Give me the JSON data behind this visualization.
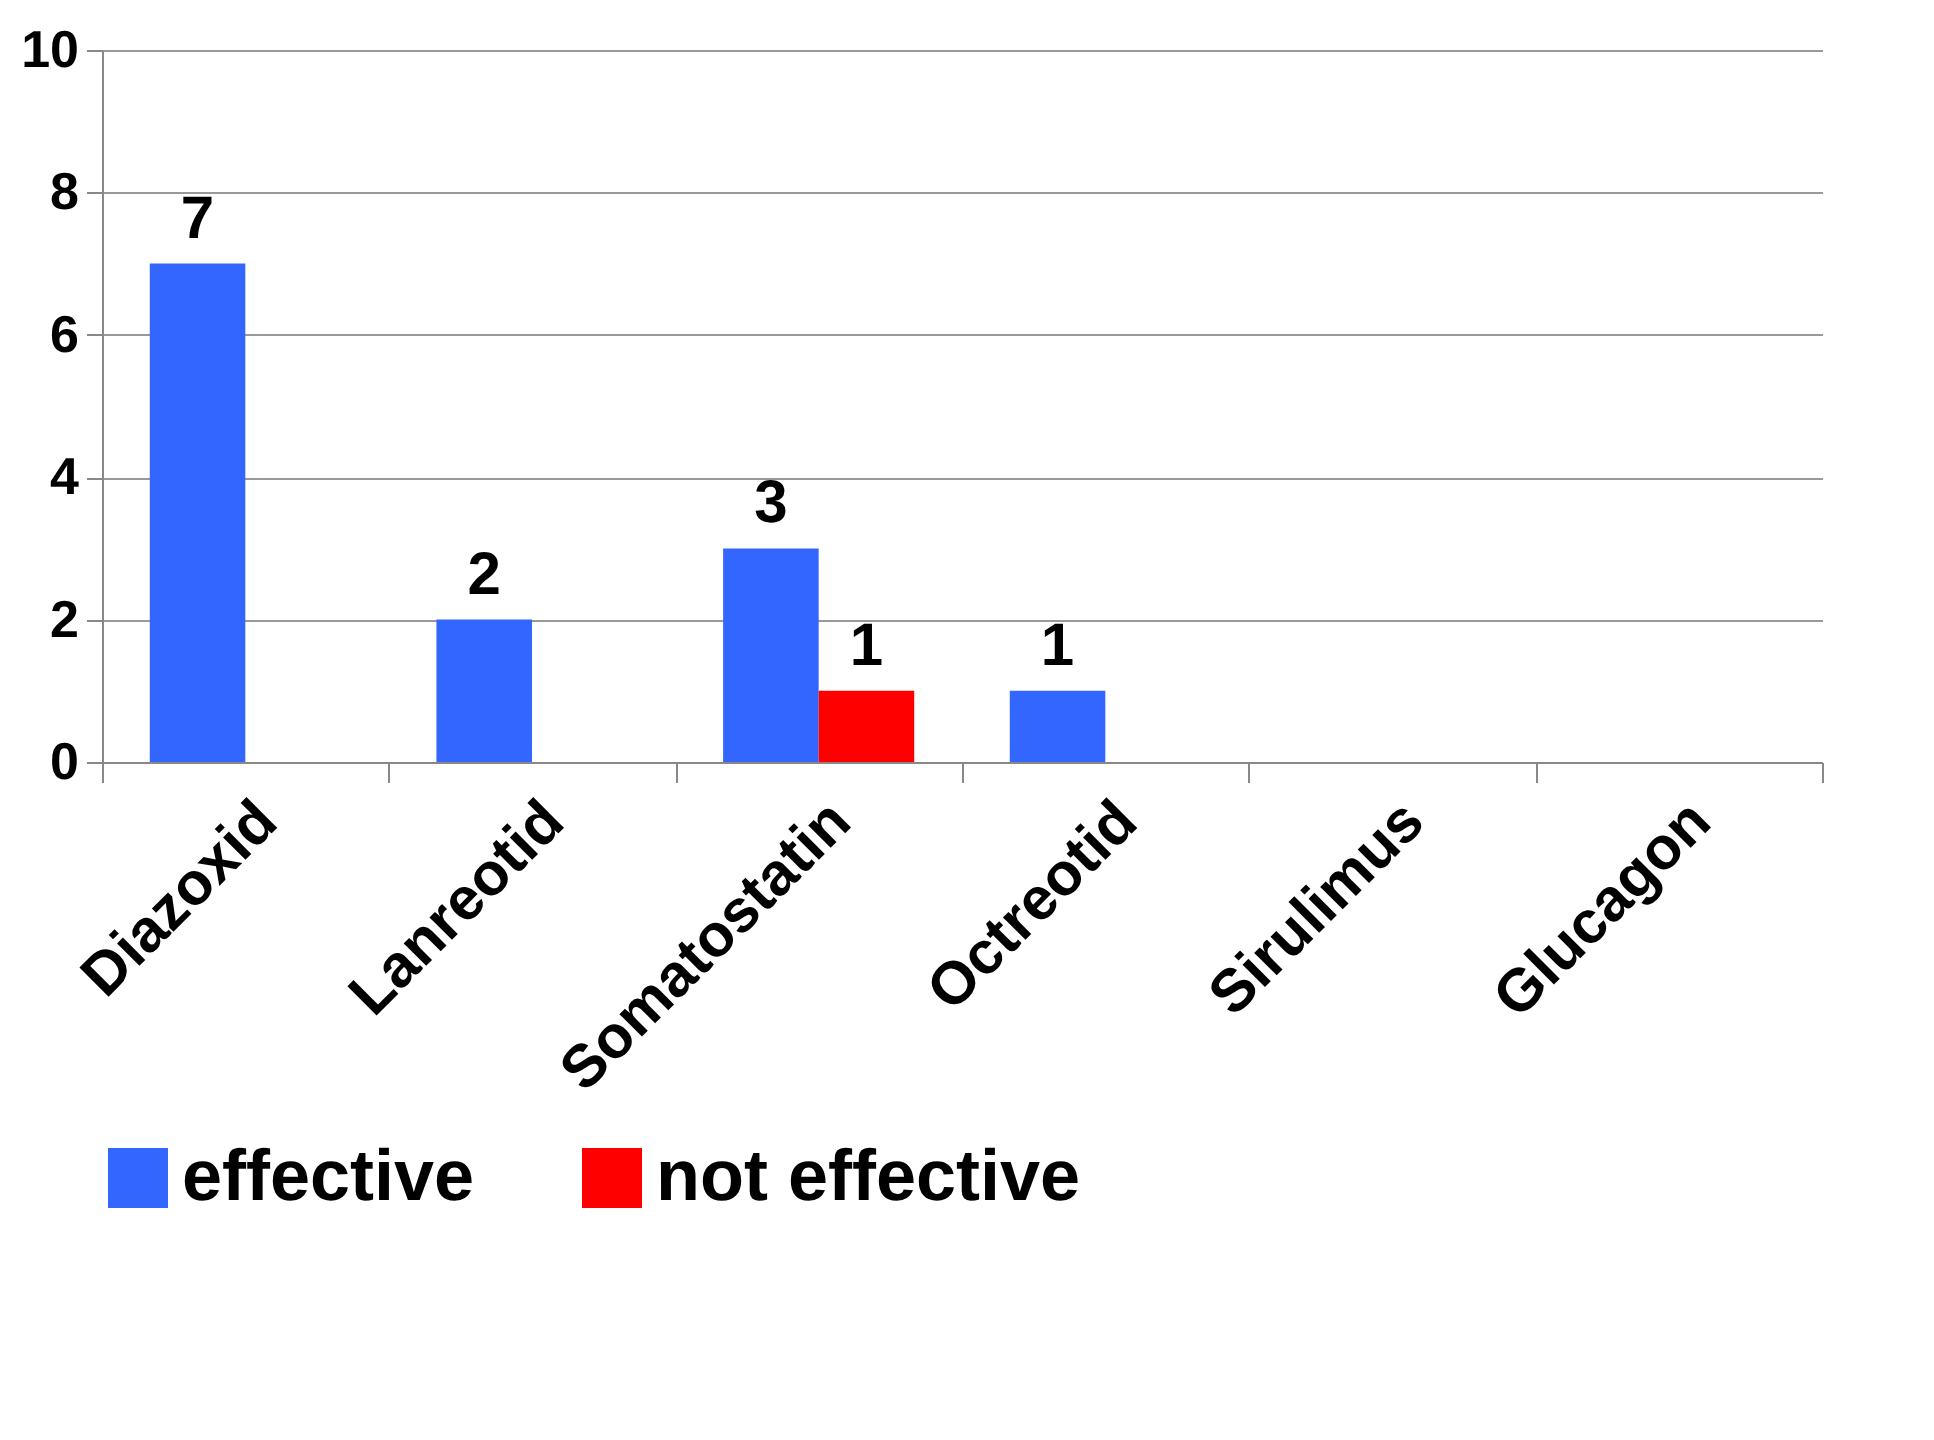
{
  "chart_data": {
    "type": "bar",
    "categories": [
      "Diazoxid",
      "Lanreotid",
      "Somatostatin",
      "Octreotid",
      "Sirulimus",
      "Glucagon"
    ],
    "series": [
      {
        "name": "effective",
        "color": "#3366ff",
        "values": [
          7,
          2,
          3,
          1,
          0,
          0
        ],
        "value_labels": [
          "7",
          "2",
          "3",
          "1",
          null,
          null
        ]
      },
      {
        "name": "not effective",
        "color": "#ff0000",
        "values": [
          0,
          0,
          1,
          0,
          0,
          0
        ],
        "value_labels": [
          null,
          null,
          "1",
          null,
          null,
          null
        ]
      }
    ],
    "ylim": [
      0,
      10
    ],
    "yticks": [
      0,
      2,
      4,
      6,
      8,
      10
    ],
    "grid": "y",
    "legend": "bottom"
  }
}
